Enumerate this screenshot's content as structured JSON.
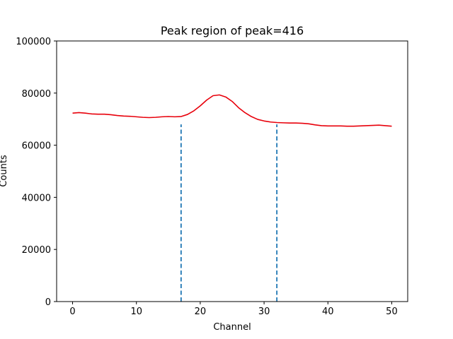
{
  "chart_data": {
    "type": "line",
    "title": "Peak region of peak=416",
    "xlabel": "Channel",
    "ylabel": "Counts",
    "xlim": [
      -2.5,
      52.5
    ],
    "ylim": [
      0,
      100000
    ],
    "x_ticks": [
      0,
      10,
      20,
      30,
      40,
      50
    ],
    "y_ticks": [
      0,
      20000,
      40000,
      60000,
      80000,
      100000
    ],
    "grid": false,
    "series": [
      {
        "color": "#e8000b",
        "x": [
          0,
          1,
          2,
          3,
          4,
          5,
          6,
          7,
          8,
          9,
          10,
          11,
          12,
          13,
          14,
          15,
          16,
          17,
          18,
          19,
          20,
          21,
          22,
          23,
          24,
          25,
          26,
          27,
          28,
          29,
          30,
          31,
          32,
          33,
          34,
          35,
          36,
          37,
          38,
          39,
          40,
          41,
          42,
          43,
          44,
          45,
          46,
          47,
          48,
          49,
          50
        ],
        "y": [
          72300,
          72500,
          72300,
          72000,
          71900,
          71900,
          71700,
          71400,
          71200,
          71100,
          70900,
          70700,
          70600,
          70700,
          70900,
          71000,
          70900,
          71000,
          71800,
          73200,
          75100,
          77300,
          79000,
          79300,
          78500,
          76800,
          74400,
          72500,
          71000,
          69900,
          69300,
          68900,
          68700,
          68600,
          68500,
          68500,
          68400,
          68200,
          67800,
          67500,
          67400,
          67400,
          67400,
          67300,
          67300,
          67400,
          67500,
          67600,
          67700,
          67500,
          67300
        ]
      }
    ],
    "vlines": [
      {
        "x": 17,
        "color": "#1f77b4",
        "style": "dashed"
      },
      {
        "x": 32,
        "color": "#1f77b4",
        "style": "dashed"
      }
    ]
  }
}
